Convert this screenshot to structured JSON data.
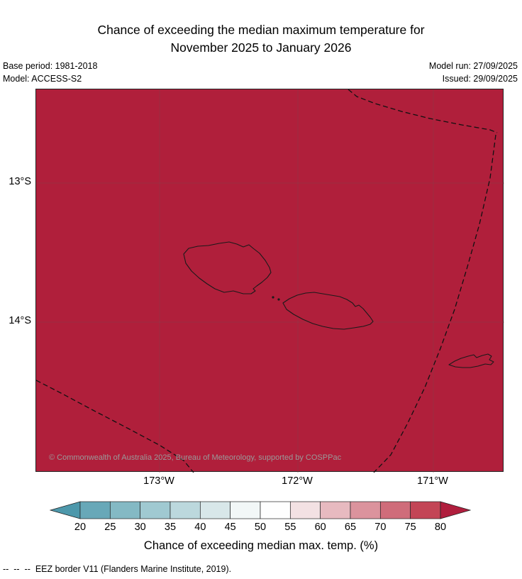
{
  "header": {
    "title_line1": "Chance of exceeding the median maximum temperature for",
    "title_line2": "November 2025 to January 2026",
    "base_period": "Base period: 1981-2018",
    "model": "Model: ACCESS-S2",
    "model_run": "Model run: 27/09/2025",
    "issued": "Issued: 29/09/2025"
  },
  "map": {
    "lat_labels": [
      "13°S",
      "14°S"
    ],
    "lon_labels": [
      "173°W",
      "172°W",
      "171°W"
    ],
    "copyright": "© Commonwealth of Australia 2025, Bureau of Meteorology, supported by COSPPac"
  },
  "colorbar": {
    "label": "Chance of exceeding median max. temp. (%)",
    "ticks": [
      "20",
      "25",
      "30",
      "35",
      "40",
      "45",
      "50",
      "55",
      "60",
      "65",
      "70",
      "75",
      "80"
    ],
    "segment_colors": [
      "#68a8b8",
      "#84b9c4",
      "#a0c9d1",
      "#bcd8dd",
      "#d8e7e9",
      "#f2f7f7",
      "#fefefe",
      "#f3e1e3",
      "#e7bac0",
      "#db939d",
      "#cf6c7a",
      "#c34556"
    ],
    "arrow_left_color": "#4d98ab",
    "arrow_right_color": "#b01e3d"
  },
  "colors": {
    "map_fill": "#b01f3b",
    "grid_line": "#8d3b49",
    "coastline": "#1a1a1a",
    "eez_line": "#111111"
  },
  "footer": {
    "eez_note": "--  --  --  EEZ border V11 (Flanders Marine Institute, 2019)."
  },
  "chart_data": {
    "type": "heatmap",
    "title": "Chance of exceeding the median maximum temperature for November 2025 to January 2026",
    "region": "Samoa / American Samoa (South Pacific)",
    "x_ticks": [
      "173°W",
      "172°W",
      "171°W"
    ],
    "y_ticks": [
      "13°S",
      "14°S"
    ],
    "colorbar_label": "Chance of exceeding median max. temp. (%)",
    "colorbar_ticks": [
      20,
      25,
      30,
      35,
      40,
      45,
      50,
      55,
      60,
      65,
      70,
      75,
      80
    ],
    "values_summary": "Uniform field: entire displayed domain shaded in the highest (>80%) chance category (dark red)",
    "overlays": [
      "Savai'i coastline",
      "Upolu coastline",
      "Tutuila coastline",
      "EEZ border (dashed)"
    ]
  }
}
